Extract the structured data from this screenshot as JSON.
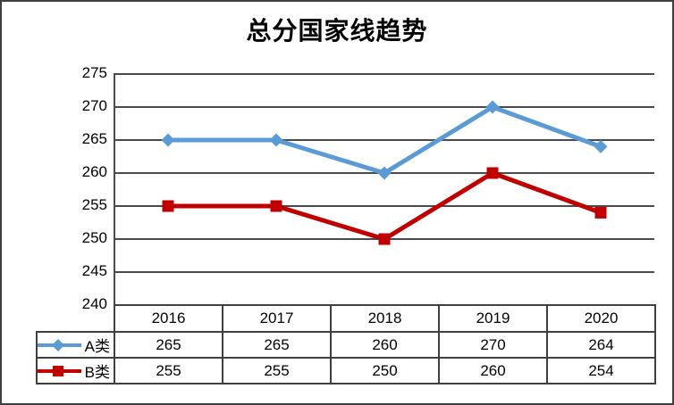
{
  "window": {
    "background": "#ffffff",
    "border_color": "#3f3f3f"
  },
  "chart_data": {
    "type": "line",
    "title": "总分国家线趋势",
    "categories": [
      "2016",
      "2017",
      "2018",
      "2019",
      "2020"
    ],
    "series": [
      {
        "name": "A类",
        "values": [
          265,
          265,
          260,
          270,
          264
        ],
        "color": "#5B9BD5",
        "marker": "diamond"
      },
      {
        "name": "B类",
        "values": [
          255,
          255,
          250,
          260,
          254
        ],
        "color": "#C00000",
        "marker": "square"
      }
    ],
    "xlabel": "",
    "ylabel": "",
    "ylim": [
      240,
      275
    ],
    "ytick_step": 5,
    "yticks": [
      275,
      270,
      265,
      260,
      255,
      250,
      245,
      240
    ],
    "grid": "horizontal-only",
    "gridline_color": "#4a4a4a",
    "axis_color": "#4a4a4a",
    "text_color": "#000000",
    "legend_position": "data-table-left",
    "data_table_shown": true
  }
}
